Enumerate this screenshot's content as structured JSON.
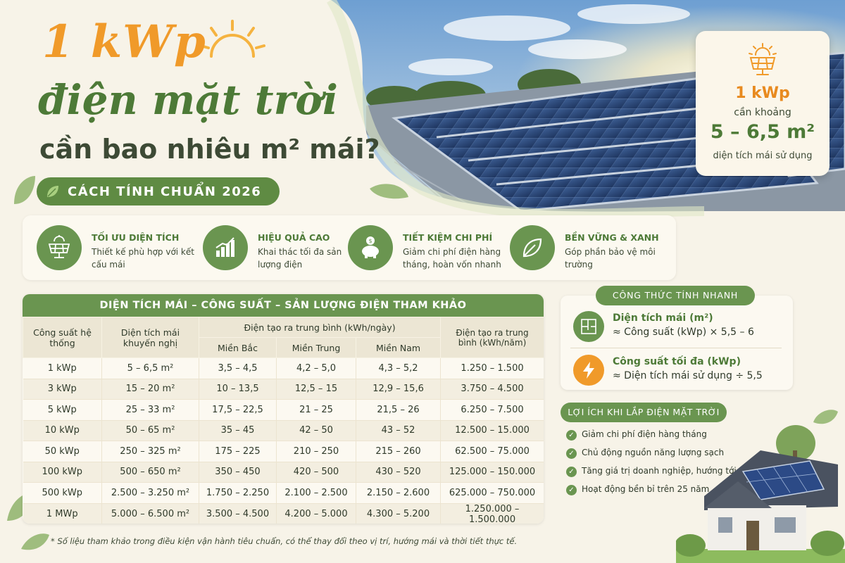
{
  "title": {
    "line1": "1 kWp",
    "line2": "điện mặt trời",
    "line3": "cần bao nhiêu m² mái?",
    "method": "CÁCH TÍNH CHUẨN 2026"
  },
  "summary": {
    "capacity": "1 kWp",
    "need": "cần khoảng",
    "area": "5 – 6,5 m²",
    "desc": "diện tích mái sử dụng"
  },
  "features": [
    {
      "title": "TỐI ƯU DIỆN TÍCH",
      "desc": "Thiết kế phù hợp với kết cấu mái",
      "icon": "solar-panel-icon"
    },
    {
      "title": "HIỆU QUẢ CAO",
      "desc": "Khai thác tối đa sản lượng điện",
      "icon": "bar-chart-icon"
    },
    {
      "title": "TIẾT KIỆM CHI PHÍ",
      "desc": "Giảm chi phí điện hàng tháng, hoàn vốn nhanh",
      "icon": "piggy-bank-icon"
    },
    {
      "title": "BỀN VỮNG & XANH",
      "desc": "Góp phần bảo vệ môi trường",
      "icon": "leaf-icon"
    }
  ],
  "table": {
    "title": "DIỆN TÍCH MÁI – CÔNG SUẤT – SẢN LƯỢNG ĐIỆN THAM KHẢO",
    "headers": {
      "capacity": "Công suất hệ thống",
      "area": "Diện tích mái khuyến nghị",
      "daily": "Điện tạo ra trung bình (kWh/ngày)",
      "north": "Miền Bắc",
      "central": "Miền Trung",
      "south": "Miền Nam",
      "yearly": "Điện tạo ra trung bình (kWh/năm)"
    },
    "rows": [
      [
        "1 kWp",
        "5 – 6,5 m²",
        "3,5 – 4,5",
        "4,2 – 5,0",
        "4,3 – 5,2",
        "1.250 – 1.500"
      ],
      [
        "3 kWp",
        "15 – 20 m²",
        "10 – 13,5",
        "12,5 – 15",
        "12,9 – 15,6",
        "3.750 – 4.500"
      ],
      [
        "5 kWp",
        "25 – 33 m²",
        "17,5 – 22,5",
        "21 – 25",
        "21,5 – 26",
        "6.250 – 7.500"
      ],
      [
        "10 kWp",
        "50 – 65 m²",
        "35 – 45",
        "42 – 50",
        "43 – 52",
        "12.500 – 15.000"
      ],
      [
        "50 kWp",
        "250 – 325 m²",
        "175 – 225",
        "210 – 250",
        "215 – 260",
        "62.500 – 75.000"
      ],
      [
        "100 kWp",
        "500 – 650 m²",
        "350 – 450",
        "420 – 500",
        "430 – 520",
        "125.000 – 150.000"
      ],
      [
        "500 kWp",
        "2.500 – 3.250 m²",
        "1.750 – 2.250",
        "2.100 – 2.500",
        "2.150 – 2.600",
        "625.000 – 750.000"
      ],
      [
        "1 MWp",
        "5.000 – 6.500 m²",
        "3.500 – 4.500",
        "4.200 – 5.000",
        "4.300 – 5.200",
        "1.250.000 – 1.500.000"
      ]
    ]
  },
  "formula": {
    "title": "CÔNG THỨC TÍNH NHANH",
    "area_label": "Diện tích mái (m²)",
    "area_expr": "≈ Công suất (kWp) × 5,5 – 6",
    "power_label": "Công suất tối đa (kWp)",
    "power_expr": "≈ Diện tích mái sử dụng ÷ 5,5"
  },
  "benefits": {
    "title": "LỢI ÍCH KHI LẮP ĐIỆN MẶT TRỜI",
    "items": [
      "Giảm chi phí điện hàng tháng",
      "Chủ động nguồn năng lượng sạch",
      "Tăng giá trị doanh nghiệp, hướng tới Net Zero",
      "Hoạt động bền bỉ trên 25 năm"
    ]
  },
  "footnote": "* Số liệu tham khảo trong điều kiện vận hành tiêu chuẩn, có thể thay đổi theo vị trí, hướng mái và thời tiết thực tế.",
  "colors": {
    "green": "#6a9550",
    "dark_green": "#4d7a37",
    "orange": "#f09a2a",
    "cream": "#f7f3e8"
  }
}
